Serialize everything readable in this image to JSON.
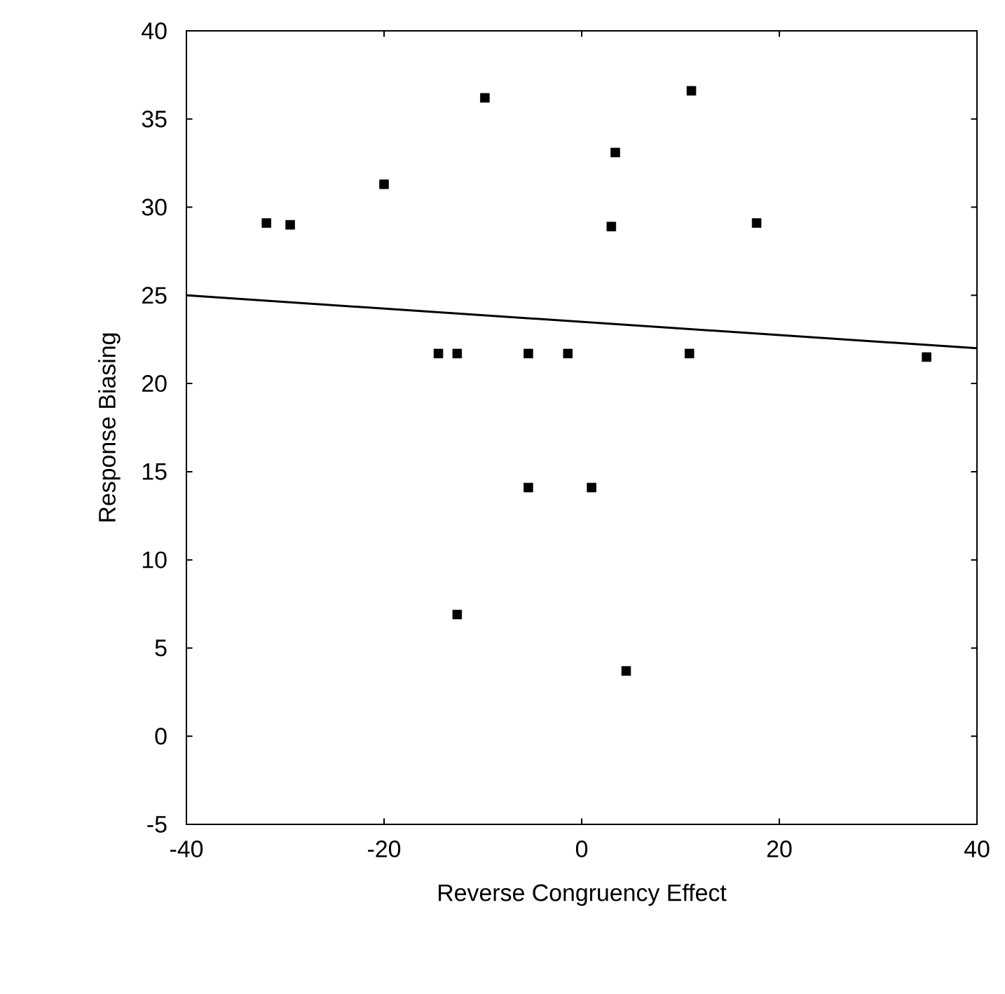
{
  "chart_data": {
    "type": "scatter",
    "xlabel": "Reverse Congruency Effect",
    "ylabel": "Response Biasing",
    "xlim": [
      -40,
      40
    ],
    "xticks": [
      -40,
      -20,
      0,
      20,
      40
    ],
    "ylim": [
      -5,
      40
    ],
    "yticks": [
      -5,
      0,
      5,
      10,
      15,
      20,
      25,
      30,
      35,
      40
    ],
    "grid": false,
    "series": [
      {
        "marker": "square",
        "color": "#000000",
        "x": [
          -31.9,
          -29.5,
          -20.0,
          -14.5,
          -12.6,
          -12.6,
          -9.8,
          -5.4,
          -5.4,
          -1.4,
          1.0,
          3.0,
          3.4,
          4.5,
          11.1,
          10.9,
          17.7,
          34.9
        ],
        "values": [
          29.1,
          29.0,
          31.3,
          21.7,
          21.7,
          6.9,
          36.2,
          21.7,
          14.1,
          21.7,
          14.1,
          28.9,
          33.1,
          3.7,
          36.6,
          21.7,
          29.1,
          21.5
        ]
      },
      {
        "type": "line",
        "marker": "none",
        "color": "#000000",
        "x": [
          -40,
          40
        ],
        "values": [
          25.0,
          22.0
        ]
      }
    ]
  }
}
